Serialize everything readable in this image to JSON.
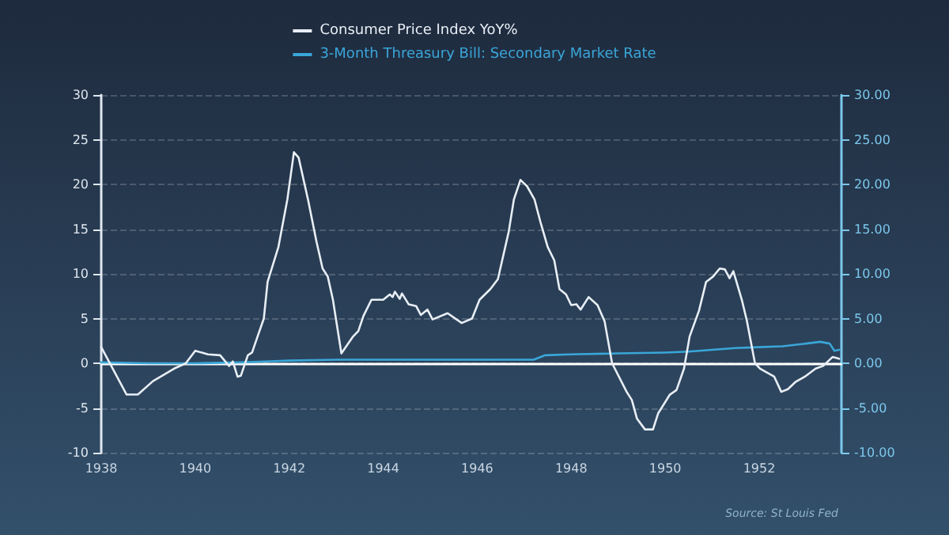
{
  "chart_data": {
    "type": "line",
    "xlim": [
      1938,
      1953.75
    ],
    "xticks": [
      1938,
      1940,
      1942,
      1944,
      1946,
      1948,
      1950,
      1952
    ],
    "ylim": [
      -10,
      30
    ],
    "yticks": [
      -10,
      -5,
      0,
      5,
      10,
      15,
      20,
      25,
      30
    ],
    "y2lim": [
      -10,
      30
    ],
    "y2ticks": [
      {
        "value": -10,
        "label": "-10.00"
      },
      {
        "value": -5,
        "label": "-5.00"
      },
      {
        "value": 0,
        "label": "0.00"
      },
      {
        "value": 5,
        "label": "5.00"
      },
      {
        "value": 10,
        "label": "10.00"
      },
      {
        "value": 15,
        "label": "15.00"
      },
      {
        "value": 20,
        "label": "20.00"
      },
      {
        "value": 25,
        "label": "25.00"
      },
      {
        "value": 30,
        "label": "30.00"
      }
    ],
    "grid": "y",
    "legend": "top",
    "marker": "none",
    "line_style": "solid",
    "annotations": [
      "Source: St Louis Fed"
    ],
    "series": [
      {
        "name": "Consumer Price Index YoY%",
        "color": "#e8eef5",
        "x": [
          1938.0,
          1938.54,
          1938.78,
          1939.1,
          1939.55,
          1939.8,
          1940.0,
          1940.27,
          1940.53,
          1940.72,
          1940.8,
          1940.9,
          1940.97,
          1941.12,
          1941.21,
          1941.34,
          1941.46,
          1941.54,
          1941.77,
          1941.96,
          1942.1,
          1942.2,
          1942.4,
          1942.58,
          1942.71,
          1942.82,
          1942.93,
          1943.11,
          1943.36,
          1943.47,
          1943.58,
          1943.75,
          1944.0,
          1944.14,
          1944.2,
          1944.25,
          1944.35,
          1944.4,
          1944.54,
          1944.7,
          1944.8,
          1944.94,
          1945.05,
          1945.37,
          1945.67,
          1945.89,
          1946.05,
          1946.28,
          1946.44,
          1946.67,
          1946.78,
          1946.92,
          1947.06,
          1947.22,
          1947.34,
          1947.5,
          1947.64,
          1947.75,
          1947.89,
          1948.0,
          1948.11,
          1948.2,
          1948.37,
          1948.56,
          1948.71,
          1948.87,
          1949.18,
          1949.29,
          1949.4,
          1949.57,
          1949.74,
          1949.85,
          1950.1,
          1950.24,
          1950.4,
          1950.52,
          1950.72,
          1950.87,
          1951.02,
          1951.16,
          1951.27,
          1951.37,
          1951.45,
          1951.63,
          1951.74,
          1951.91,
          1952.02,
          1952.32,
          1952.47,
          1952.61,
          1952.77,
          1952.97,
          1953.2,
          1953.36,
          1953.56,
          1953.7
        ],
        "values": [
          1.8,
          -3.5,
          -3.5,
          -2,
          -0.6,
          0,
          1.4,
          1.0,
          0.9,
          -0.3,
          0.2,
          -1.5,
          -1.4,
          0.9,
          1.2,
          3.2,
          5.0,
          9.1,
          13,
          18.3,
          23.6,
          23,
          18.3,
          13.6,
          10.6,
          9.7,
          7.1,
          1.1,
          3.0,
          3.6,
          5.3,
          7.1,
          7.1,
          7.7,
          7.4,
          8.0,
          7.2,
          7.8,
          6.6,
          6.4,
          5.4,
          6.0,
          4.9,
          5.6,
          4.5,
          5.0,
          7.1,
          8.3,
          9.4,
          14.7,
          18.3,
          20.5,
          19.8,
          18.3,
          15.9,
          13,
          11.5,
          8.3,
          7.7,
          6.5,
          6.6,
          6.0,
          7.4,
          6.5,
          4.7,
          0,
          -3.2,
          -4.1,
          -6.2,
          -7.4,
          -7.4,
          -5.6,
          -3.5,
          -3.0,
          -0.6,
          3.0,
          5.9,
          9.1,
          9.7,
          10.6,
          10.5,
          9.5,
          10.3,
          7.1,
          4.7,
          0,
          -0.6,
          -1.5,
          -3.2,
          -2.9,
          -2.1,
          -1.5,
          -0.6,
          -0.3,
          0.7,
          0.5
        ]
      },
      {
        "name": "3-Month Threasury Bill: Secondary Market Rate",
        "color": "#3aa6d8",
        "axis": "y2",
        "x": [
          1938.0,
          1939.0,
          1940.0,
          1941.0,
          1941.5,
          1942.0,
          1943.0,
          1944.0,
          1945.0,
          1946.0,
          1947.0,
          1947.2,
          1947.45,
          1948.0,
          1949.0,
          1950.0,
          1950.5,
          1951.0,
          1951.5,
          1952.0,
          1952.5,
          1953.0,
          1953.3,
          1953.5,
          1953.6,
          1953.7
        ],
        "values": [
          0.1,
          0.0,
          0.0,
          0.1,
          0.2,
          0.3,
          0.4,
          0.4,
          0.4,
          0.4,
          0.4,
          0.4,
          0.9,
          1.0,
          1.1,
          1.2,
          1.3,
          1.5,
          1.7,
          1.8,
          1.9,
          2.2,
          2.4,
          2.2,
          1.4,
          1.5
        ]
      }
    ]
  }
}
